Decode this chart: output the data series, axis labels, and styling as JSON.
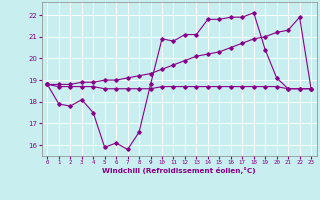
{
  "xlabel": "Windchill (Refroidissement éolien,°C)",
  "bg_color": "#c8eef0",
  "grid_color": "#ffffff",
  "line_color": "#880088",
  "xlim": [
    -0.5,
    23.5
  ],
  "ylim": [
    15.5,
    22.6
  ],
  "yticks": [
    16,
    17,
    18,
    19,
    20,
    21,
    22
  ],
  "xticks": [
    0,
    1,
    2,
    3,
    4,
    5,
    6,
    7,
    8,
    9,
    10,
    11,
    12,
    13,
    14,
    15,
    16,
    17,
    18,
    19,
    20,
    21,
    22,
    23
  ],
  "series1_x": [
    0,
    1,
    2,
    3,
    4,
    5,
    6,
    7,
    8,
    9,
    10,
    11,
    12,
    13,
    14,
    15,
    16,
    17,
    18,
    19,
    20,
    21,
    22,
    23
  ],
  "series1_y": [
    18.8,
    17.9,
    17.8,
    18.1,
    17.5,
    15.9,
    16.1,
    15.8,
    16.6,
    18.8,
    20.9,
    20.8,
    21.1,
    21.1,
    21.8,
    21.8,
    21.9,
    21.9,
    22.1,
    20.4,
    19.1,
    18.6,
    18.6,
    18.6
  ],
  "series2_x": [
    0,
    1,
    2,
    3,
    4,
    5,
    6,
    7,
    8,
    9,
    10,
    11,
    12,
    13,
    14,
    15,
    16,
    17,
    18,
    19,
    20,
    21,
    22,
    23
  ],
  "series2_y": [
    18.8,
    18.7,
    18.7,
    18.7,
    18.7,
    18.6,
    18.6,
    18.6,
    18.6,
    18.6,
    18.7,
    18.7,
    18.7,
    18.7,
    18.7,
    18.7,
    18.7,
    18.7,
    18.7,
    18.7,
    18.7,
    18.6,
    18.6,
    18.6
  ],
  "series3_x": [
    0,
    1,
    2,
    3,
    4,
    5,
    6,
    7,
    8,
    9,
    10,
    11,
    12,
    13,
    14,
    15,
    16,
    17,
    18,
    19,
    20,
    21,
    22,
    23
  ],
  "series3_y": [
    18.8,
    18.8,
    18.8,
    18.9,
    18.9,
    19.0,
    19.0,
    19.1,
    19.2,
    19.3,
    19.5,
    19.7,
    19.9,
    20.1,
    20.2,
    20.3,
    20.5,
    20.7,
    20.9,
    21.0,
    21.2,
    21.3,
    21.9,
    18.6
  ],
  "marker_size": 1.8,
  "line_width": 0.8
}
